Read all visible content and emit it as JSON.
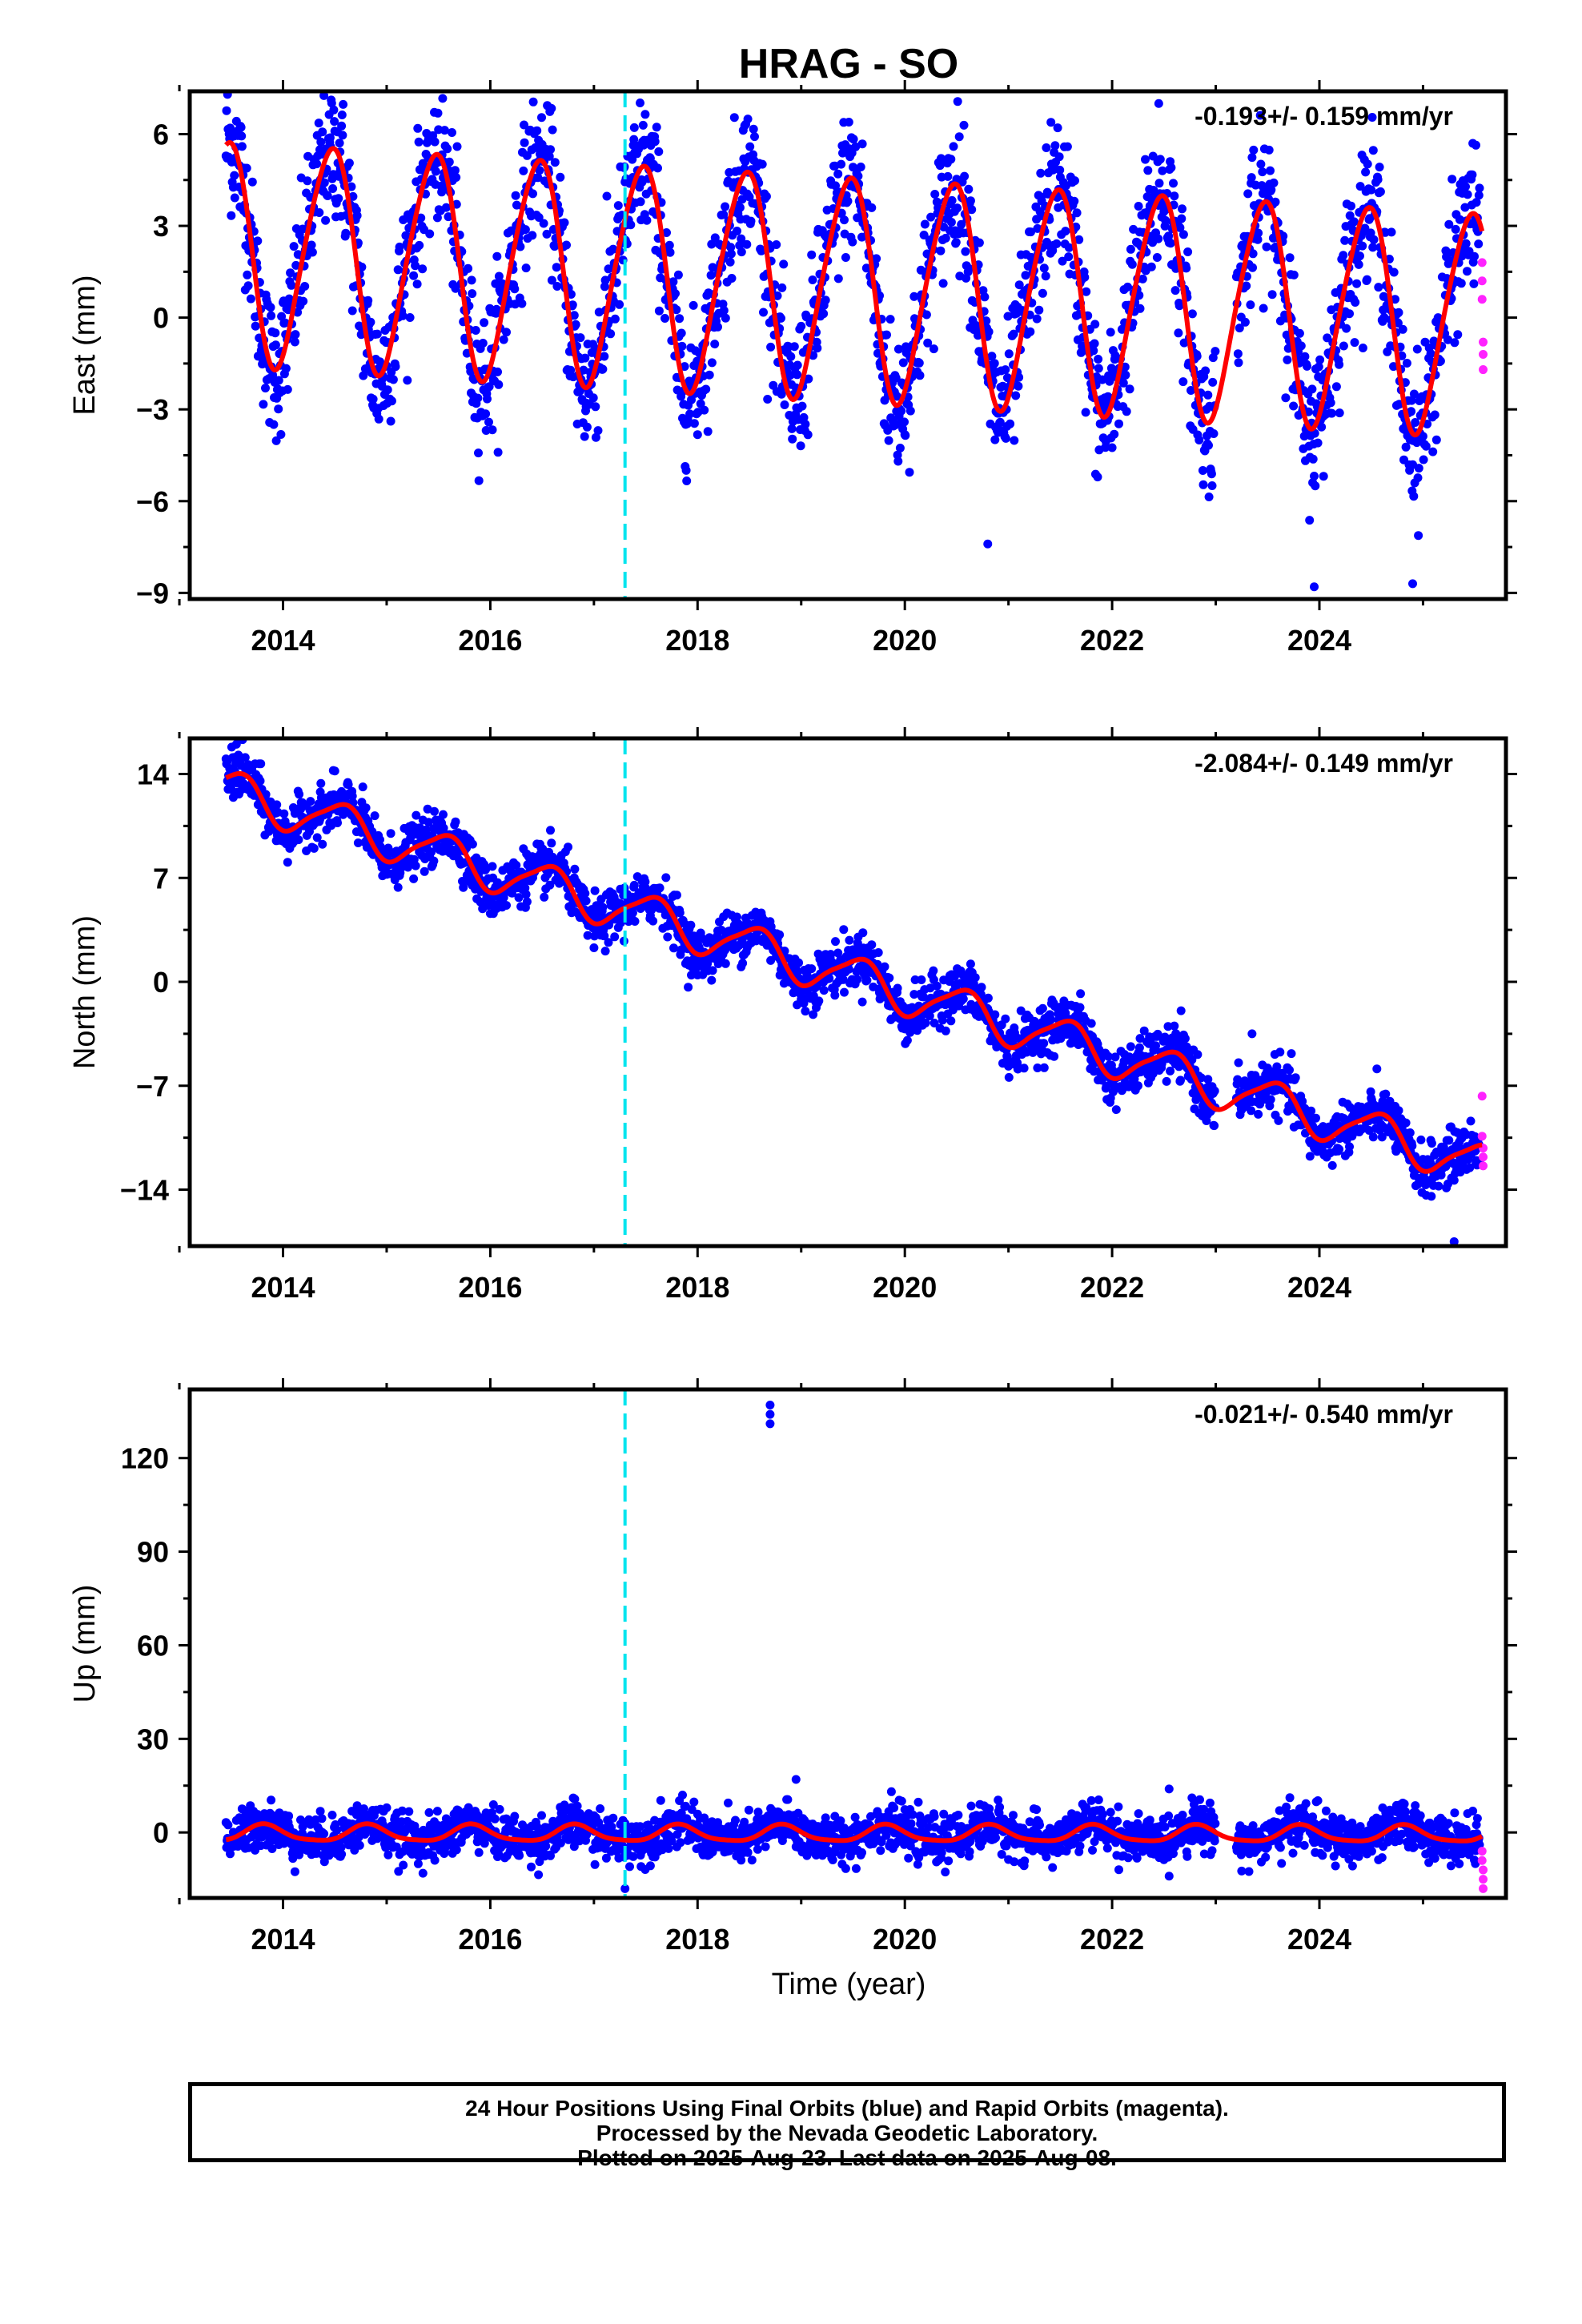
{
  "title": "HRAG - SO",
  "colors": {
    "final": "#0000ff",
    "rapid": "#ff22ff",
    "model": "#ff0000",
    "event": "#00e5ee",
    "frame": "#000000"
  },
  "x_ticks": [
    "2014",
    "2016",
    "2018",
    "2020",
    "2022",
    "2024"
  ],
  "x_label": "Time (year)",
  "footer": {
    "line1": "24 Hour Positions Using Final Orbits (blue) and Rapid Orbits (magenta).",
    "line2": "Processed by the Nevada Geodetic Laboratory.",
    "line3": "Plotted on 2025-Aug-23. Last data on 2025-Aug-08."
  },
  "chart_data": [
    {
      "type": "scatter",
      "ylabel": "East (mm)",
      "rate": "-0.193+/- 0.159 mm/yr",
      "xlim": [
        2013.1,
        2025.8
      ],
      "ylim": [
        -9.2,
        7.4
      ],
      "yticks": [
        6,
        3,
        0,
        -3,
        -6,
        -9
      ],
      "ytick_labels": [
        "6",
        "3",
        "0",
        "−3",
        "−6",
        "−9"
      ],
      "event_line_x": 2017.3,
      "model": {
        "trend_mm_per_yr": -0.193,
        "offset": 1.0,
        "annual_amp": 3.6,
        "annual_peak": 0.45,
        "semi_amp": 0.4,
        "semi_phase": 0.1
      },
      "scatter": {
        "noise": 1.15
      },
      "rapid_points": [
        [
          2025.57,
          1.8
        ],
        [
          2025.57,
          1.2
        ],
        [
          2025.57,
          0.6
        ],
        [
          2025.58,
          -0.8
        ],
        [
          2025.58,
          -1.2
        ],
        [
          2025.58,
          -1.7
        ]
      ],
      "outliers": [
        [
          2022.45,
          7.0
        ],
        [
          2023.95,
          -8.8
        ],
        [
          2024.9,
          -8.7
        ],
        [
          2020.8,
          -7.4
        ]
      ],
      "gaps": [
        [
          2023.0,
          2023.2
        ]
      ],
      "series": [
        {
          "name": "Final Orbits (blue)"
        },
        {
          "name": "Rapid Orbits (magenta)"
        }
      ]
    },
    {
      "type": "scatter",
      "ylabel": "North (mm)",
      "rate": "-2.084+/- 0.149 mm/yr",
      "xlim": [
        2013.1,
        2025.8
      ],
      "ylim": [
        -17.8,
        16.4
      ],
      "yticks": [
        14,
        7,
        0,
        -7,
        -14
      ],
      "ytick_labels": [
        "14",
        "7",
        "0",
        "−7",
        "−14"
      ],
      "event_line_x": 2017.3,
      "model": {
        "trend_mm_per_yr": -2.084,
        "offset": 0.3,
        "annual_amp": 1.4,
        "annual_peak": 0.55,
        "semi_amp": 0.3,
        "semi_phase": 0.2
      },
      "scatter": {
        "noise": 0.85
      },
      "rapid_points": [
        [
          2025.57,
          -7.7
        ],
        [
          2025.57,
          -10.4
        ],
        [
          2025.58,
          -11.2
        ],
        [
          2025.58,
          -11.8
        ],
        [
          2025.58,
          -12.4
        ]
      ],
      "outliers": [
        [
          2013.55,
          16.0
        ],
        [
          2014.5,
          14.2
        ],
        [
          2023.35,
          -3.5
        ],
        [
          2025.3,
          -17.5
        ]
      ],
      "gaps": [
        [
          2023.0,
          2023.2
        ]
      ],
      "series": [
        {
          "name": "Final Orbits (blue)"
        },
        {
          "name": "Rapid Orbits (magenta)"
        }
      ]
    },
    {
      "type": "scatter",
      "ylabel": "Up (mm)",
      "rate": "-0.021+/- 0.540 mm/yr",
      "xlim": [
        2013.1,
        2025.8
      ],
      "ylim": [
        -21,
        142
      ],
      "yticks": [
        120,
        90,
        60,
        30,
        0
      ],
      "ytick_labels": [
        "120",
        "90",
        "60",
        "30",
        "0"
      ],
      "event_line_x": 2017.3,
      "model": {
        "trend_mm_per_yr": -0.021,
        "offset": -0.5,
        "annual_amp": 2.6,
        "annual_peak": 0.82,
        "semi_amp": 0.6,
        "semi_phase": 0.3
      },
      "scatter": {
        "noise": 3.6
      },
      "rapid_points": [
        [
          2025.57,
          -6.0
        ],
        [
          2025.57,
          -9.0
        ],
        [
          2025.58,
          -12.0
        ],
        [
          2025.58,
          -15.0
        ],
        [
          2025.58,
          -18.0
        ]
      ],
      "outliers": [
        [
          2018.7,
          137
        ],
        [
          2018.7,
          134
        ],
        [
          2018.7,
          131
        ],
        [
          2018.95,
          17
        ],
        [
          2017.3,
          -18
        ],
        [
          2022.55,
          -14
        ]
      ],
      "gaps": [
        [
          2023.0,
          2023.2
        ]
      ],
      "series": [
        {
          "name": "Final Orbits (blue)"
        },
        {
          "name": "Rapid Orbits (magenta)"
        }
      ]
    }
  ]
}
